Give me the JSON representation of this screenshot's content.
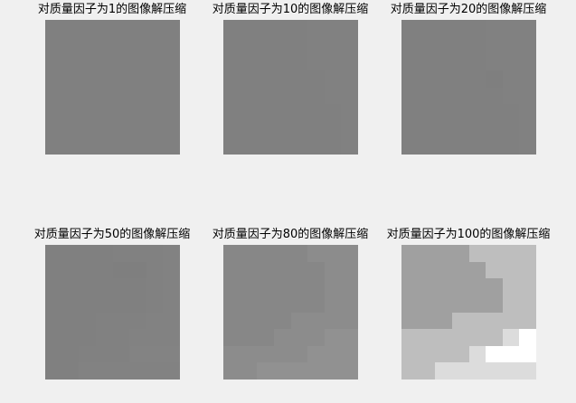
{
  "panels": [
    {
      "title": "对质量因子为1的图像解压缩",
      "pixels": [
        [
          128,
          128,
          128,
          128,
          128,
          128,
          128,
          128
        ],
        [
          128,
          128,
          128,
          128,
          128,
          128,
          128,
          128
        ],
        [
          128,
          128,
          128,
          128,
          128,
          128,
          128,
          128
        ],
        [
          128,
          128,
          128,
          128,
          128,
          128,
          128,
          128
        ],
        [
          128,
          128,
          128,
          128,
          128,
          128,
          128,
          128
        ],
        [
          128,
          128,
          128,
          128,
          128,
          128,
          128,
          128
        ],
        [
          128,
          128,
          128,
          128,
          128,
          128,
          128,
          128
        ],
        [
          128,
          128,
          128,
          128,
          128,
          128,
          128,
          128
        ]
      ]
    },
    {
      "title": "对质量因子为10的图像解压缩",
      "pixels": [
        [
          128,
          128,
          128,
          128,
          128,
          129,
          129,
          129
        ],
        [
          128,
          128,
          128,
          128,
          128,
          129,
          129,
          129
        ],
        [
          128,
          128,
          128,
          128,
          128,
          129,
          129,
          129
        ],
        [
          128,
          128,
          128,
          128,
          128,
          128,
          129,
          129
        ],
        [
          128,
          128,
          128,
          128,
          128,
          128,
          129,
          129
        ],
        [
          128,
          128,
          128,
          128,
          128,
          128,
          128,
          129
        ],
        [
          128,
          128,
          128,
          128,
          128,
          128,
          128,
          129
        ],
        [
          128,
          128,
          128,
          128,
          128,
          128,
          128,
          129
        ]
      ]
    },
    {
      "title": "对质量因子为20的图像解压缩",
      "pixels": [
        [
          128,
          128,
          128,
          128,
          128,
          129,
          129,
          129
        ],
        [
          128,
          128,
          128,
          128,
          128,
          129,
          129,
          129
        ],
        [
          128,
          128,
          128,
          128,
          128,
          129,
          129,
          129
        ],
        [
          128,
          128,
          128,
          128,
          128,
          127,
          129,
          129
        ],
        [
          128,
          128,
          128,
          128,
          128,
          128,
          129,
          129
        ],
        [
          128,
          128,
          128,
          128,
          128,
          128,
          128,
          129
        ],
        [
          128,
          128,
          128,
          128,
          128,
          128,
          128,
          129
        ],
        [
          128,
          128,
          128,
          128,
          128,
          128,
          128,
          129
        ]
      ]
    },
    {
      "title": "对质量因子为50的图像解压缩",
      "pixels": [
        [
          128,
          128,
          128,
          128,
          129,
          129,
          129,
          130
        ],
        [
          128,
          128,
          128,
          128,
          127,
          127,
          129,
          130
        ],
        [
          128,
          128,
          128,
          128,
          128,
          128,
          129,
          130
        ],
        [
          128,
          128,
          128,
          128,
          128,
          128,
          129,
          130
        ],
        [
          128,
          128,
          128,
          129,
          129,
          129,
          130,
          130
        ],
        [
          128,
          128,
          128,
          129,
          129,
          130,
          130,
          130
        ],
        [
          128,
          128,
          129,
          129,
          129,
          131,
          131,
          131
        ],
        [
          128,
          128,
          130,
          130,
          130,
          130,
          130,
          130
        ]
      ]
    },
    {
      "title": "对质量因子为80的图像解压缩",
      "pixels": [
        [
          135,
          135,
          135,
          135,
          135,
          140,
          140,
          140
        ],
        [
          135,
          135,
          135,
          135,
          135,
          135,
          140,
          140
        ],
        [
          135,
          135,
          135,
          135,
          135,
          135,
          140,
          140
        ],
        [
          135,
          135,
          135,
          135,
          135,
          135,
          140,
          140
        ],
        [
          135,
          135,
          135,
          135,
          140,
          140,
          140,
          140
        ],
        [
          135,
          135,
          135,
          140,
          140,
          140,
          145,
          145
        ],
        [
          140,
          140,
          140,
          140,
          140,
          145,
          145,
          145
        ],
        [
          140,
          140,
          145,
          145,
          145,
          145,
          145,
          145
        ]
      ]
    },
    {
      "title": "对质量因子为100的图像解压缩",
      "pixels": [
        [
          160,
          160,
          160,
          160,
          190,
          190,
          190,
          190
        ],
        [
          160,
          160,
          160,
          160,
          160,
          190,
          190,
          190
        ],
        [
          160,
          160,
          160,
          160,
          160,
          160,
          190,
          190
        ],
        [
          160,
          160,
          160,
          160,
          160,
          160,
          190,
          190
        ],
        [
          160,
          160,
          160,
          190,
          190,
          190,
          190,
          190
        ],
        [
          190,
          190,
          190,
          190,
          190,
          190,
          220,
          255
        ],
        [
          190,
          190,
          190,
          190,
          220,
          255,
          255,
          255
        ],
        [
          190,
          190,
          220,
          220,
          220,
          220,
          220,
          220
        ]
      ]
    }
  ]
}
